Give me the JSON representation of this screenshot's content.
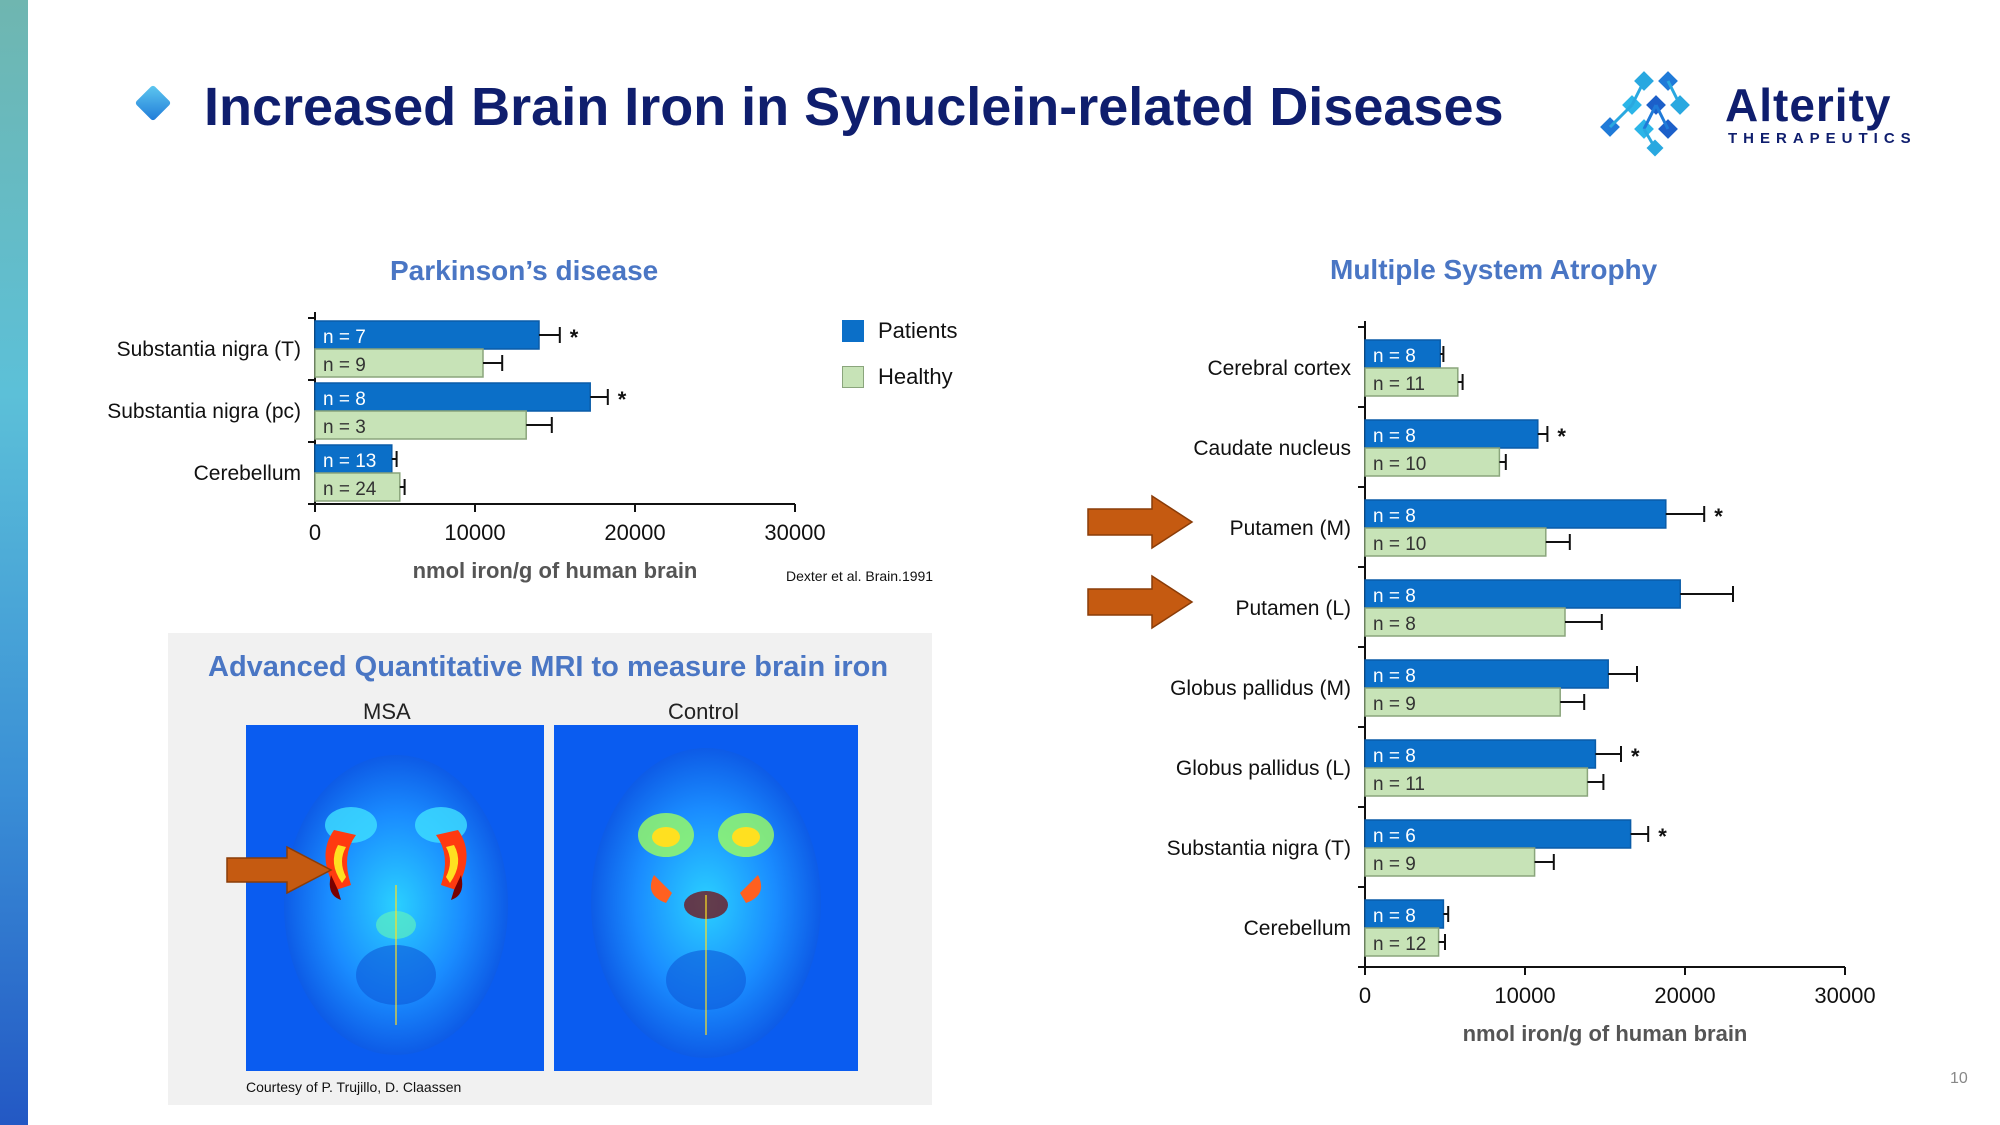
{
  "slide": {
    "title": "Increased Brain Iron in Synuclein-related Diseases",
    "page_number": "10"
  },
  "logo": {
    "name": "Alterity",
    "tagline": "THERAPEUTICS"
  },
  "colors": {
    "patients": "#0b6fc8",
    "healthy": "#c7e3b7",
    "title": "#0f1e6e",
    "chart_title": "#4a76c4",
    "arrow": "#c55a11"
  },
  "legend": {
    "patients": "Patients",
    "healthy": "Healthy"
  },
  "citation": "Dexter et al. Brain.1991",
  "mri": {
    "title": "Advanced Quantitative MRI to measure brain iron",
    "label_msa": "MSA",
    "label_control": "Control",
    "credit": "Courtesy of P. Trujillo, D. Claassen"
  },
  "chart_data": [
    {
      "type": "bar",
      "orientation": "horizontal",
      "title": "Parkinson’s disease",
      "xlabel": "nmol iron/g of human brain",
      "xlim": [
        0,
        30000
      ],
      "xticks": [
        0,
        10000,
        20000,
        30000
      ],
      "categories": [
        "Substantia nigra (T)",
        "Substantia nigra (pc)",
        "Cerebellum"
      ],
      "series": [
        {
          "name": "Patients",
          "values": [
            14000,
            17200,
            4800
          ],
          "errors": [
            1300,
            1100,
            300
          ],
          "n_labels": [
            "n = 7",
            "n = 8",
            "n = 13"
          ],
          "significant": [
            true,
            true,
            false
          ]
        },
        {
          "name": "Healthy",
          "values": [
            10500,
            13200,
            5300
          ],
          "errors": [
            1200,
            1600,
            300
          ],
          "n_labels": [
            "n = 9",
            "n = 3",
            "n = 24"
          ]
        }
      ]
    },
    {
      "type": "bar",
      "orientation": "horizontal",
      "title": "Multiple System Atrophy",
      "xlabel": "nmol iron/g of human brain",
      "xlim": [
        0,
        30000
      ],
      "xticks": [
        0,
        10000,
        20000,
        30000
      ],
      "categories": [
        "Cerebral cortex",
        "Caudate nucleus",
        "Putamen (M)",
        "Putamen (L)",
        "Globus pallidus (M)",
        "Globus pallidus (L)",
        "Substantia nigra (T)",
        "Cerebellum"
      ],
      "highlighted": [
        "Putamen (M)",
        "Putamen (L)"
      ],
      "series": [
        {
          "name": "Patients",
          "values": [
            4700,
            10800,
            18800,
            19700,
            15200,
            14400,
            16600,
            4900
          ],
          "errors": [
            200,
            600,
            2400,
            3300,
            1800,
            1600,
            1100,
            300
          ],
          "n_labels": [
            "n = 8",
            "n = 8",
            "n = 8",
            "n = 8",
            "n = 8",
            "n = 8",
            "n = 6",
            "n = 8"
          ],
          "significant": [
            false,
            true,
            true,
            false,
            false,
            true,
            true,
            false
          ]
        },
        {
          "name": "Healthy",
          "values": [
            5800,
            8400,
            11300,
            12500,
            12200,
            13900,
            10600,
            4600
          ],
          "errors": [
            300,
            400,
            1500,
            2300,
            1500,
            1000,
            1200,
            400
          ],
          "n_labels": [
            "n = 11",
            "n = 10",
            "n = 10",
            "n = 8",
            "n = 9",
            "n = 11",
            "n = 9",
            "n = 12"
          ]
        }
      ]
    }
  ]
}
